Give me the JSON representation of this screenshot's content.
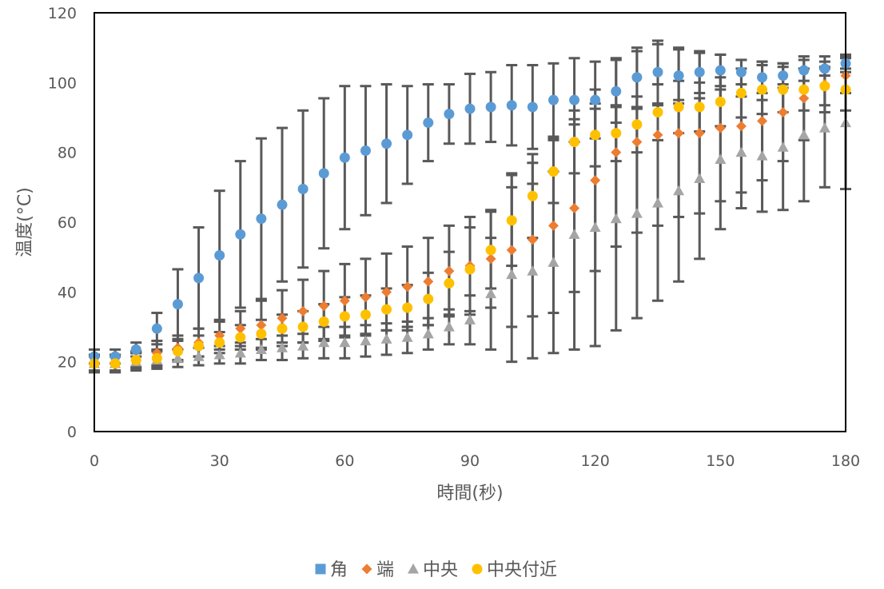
{
  "chart_data": {
    "type": "scatter",
    "xlabel": "時間(秒)",
    "ylabel": "温度(°C)",
    "xlim": [
      0,
      180
    ],
    "ylim": [
      0,
      120
    ],
    "xticks": [
      "0",
      "30",
      "60",
      "90",
      "120",
      "150",
      "180"
    ],
    "yticks": [
      "0",
      "20",
      "40",
      "60",
      "80",
      "100",
      "120"
    ],
    "grid": false,
    "legend_position": "bottom",
    "error_bars": true,
    "x": [
      0,
      5,
      10,
      15,
      20,
      25,
      30,
      35,
      40,
      45,
      50,
      55,
      60,
      65,
      70,
      75,
      80,
      85,
      90,
      95,
      100,
      105,
      110,
      115,
      120,
      125,
      130,
      135,
      140,
      145,
      150,
      155,
      160,
      165,
      170,
      175,
      180
    ],
    "series": [
      {
        "name": "角",
        "color": "#5B9BD5",
        "marker": "circle",
        "values": [
          21.5,
          21.5,
          23.5,
          29.5,
          36.5,
          44,
          50.5,
          56.5,
          61,
          65,
          69.5,
          74,
          78.5,
          80.5,
          82.5,
          85,
          88.5,
          91,
          92.5,
          93,
          93.5,
          93,
          95,
          95,
          95,
          97.5,
          101.5,
          103,
          102,
          103,
          103.5,
          103,
          101.5,
          102,
          103.5,
          104,
          105.5
        ],
        "errors": [
          2,
          2,
          2,
          4.5,
          10,
          14.5,
          18.5,
          21,
          23,
          22,
          22.5,
          21.5,
          20.5,
          18.5,
          17,
          14,
          11,
          8.5,
          10,
          10,
          11.5,
          12,
          10.5,
          12,
          11,
          9,
          8.5,
          9,
          8,
          6,
          4.5,
          3.5,
          4.5,
          3.5,
          3,
          2,
          2.5
        ]
      },
      {
        "name": "端",
        "color": "#ED7D31",
        "marker": "diamond",
        "values": [
          19.5,
          19.5,
          20.5,
          22.5,
          24,
          25.5,
          27.5,
          29.5,
          30.5,
          32.5,
          34.5,
          36,
          37.5,
          38.5,
          40,
          41.5,
          43,
          46,
          47.5,
          49.5,
          52,
          55,
          59,
          64,
          72,
          80,
          83,
          85,
          85.5,
          85.5,
          87,
          87.5,
          89,
          91.5,
          95.5,
          99.5,
          102
        ],
        "errors": [
          2.5,
          2.5,
          2.5,
          3.5,
          3.5,
          4,
          4,
          5,
          7,
          8,
          9,
          10,
          10.5,
          11,
          11,
          11.5,
          12.5,
          13,
          14,
          14,
          22,
          22,
          25,
          24,
          26,
          27,
          26,
          26,
          24,
          23,
          21,
          19,
          17,
          14,
          12,
          8,
          5
        ]
      },
      {
        "name": "中央",
        "color": "#A5A5A5",
        "marker": "triangle",
        "values": [
          19.5,
          19.5,
          20,
          20.5,
          21,
          21.5,
          22,
          22.5,
          23.5,
          24,
          24.5,
          25.5,
          25.5,
          26,
          26.5,
          27,
          28,
          30,
          32,
          39.5,
          45,
          46,
          48.5,
          56.5,
          58.5,
          61,
          62.5,
          65.5,
          69,
          72.5,
          78,
          80,
          79,
          81.5,
          85,
          87,
          88.5
        ],
        "errors": [
          2.5,
          2.5,
          2.5,
          2.5,
          2.5,
          2.5,
          2.5,
          3,
          3,
          3.5,
          3.5,
          4.5,
          4.5,
          4.5,
          4.5,
          4.5,
          4.5,
          5,
          7,
          16,
          25,
          25,
          26,
          33,
          34,
          32,
          30,
          28,
          26,
          23,
          20,
          16,
          16,
          18,
          19,
          17,
          19
        ]
      },
      {
        "name": "中央付近",
        "color": "#FFC000",
        "marker": "circle",
        "values": [
          19.5,
          19.5,
          20.5,
          21,
          23,
          24.5,
          25.5,
          27,
          28,
          29.5,
          30,
          31.5,
          33,
          33.5,
          35,
          35.5,
          38,
          42.5,
          46.5,
          52,
          60.5,
          67.5,
          74.5,
          83,
          85,
          85.5,
          88,
          91.5,
          93,
          93,
          94.5,
          97,
          98,
          98,
          98,
          99,
          98
        ],
        "errors": [
          2,
          2,
          2,
          2.5,
          3,
          3,
          3,
          3.5,
          4,
          4,
          4.5,
          5,
          5.5,
          5.5,
          6,
          6.5,
          7.5,
          9,
          12,
          11,
          13,
          12,
          9,
          9,
          9,
          8,
          8,
          8,
          7.5,
          7,
          7,
          7,
          7,
          6.5,
          6,
          5.5,
          6
        ]
      }
    ]
  }
}
